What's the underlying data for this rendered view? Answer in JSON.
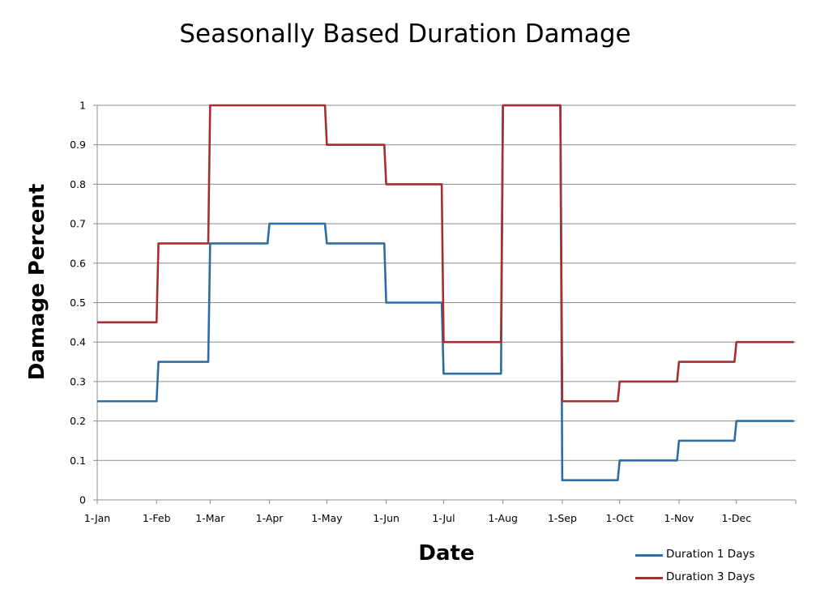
{
  "chart_data": {
    "type": "line",
    "title": "Seasonally Based Duration Damage",
    "xlabel": "Date",
    "ylabel": "Damage Percent",
    "x_ticks": [
      "1-Jan",
      "1-Feb",
      "1-Mar",
      "1-Apr",
      "1-May",
      "1-Jun",
      "1-Jul",
      "1-Aug",
      "1-Sep",
      "1-Oct",
      "1-Nov",
      "1-Dec"
    ],
    "y_ticks": [
      "0",
      "0.1",
      "0.2",
      "0.3",
      "0.4",
      "0.5",
      "0.6",
      "0.7",
      "0.8",
      "0.9",
      "1"
    ],
    "ylim": [
      0,
      1
    ],
    "grid": true,
    "legend_position": "bottom-right",
    "series": [
      {
        "name": "Duration 1 Days",
        "color": "#2e6ca6",
        "points": [
          [
            "1-Jan",
            0.25
          ],
          [
            "1-Feb",
            0.25
          ],
          [
            "2-Feb",
            0.35
          ],
          [
            "28-Feb",
            0.35
          ],
          [
            "1-Mar",
            0.65
          ],
          [
            "31-Mar",
            0.65
          ],
          [
            "1-Apr",
            0.7
          ],
          [
            "30-Apr",
            0.7
          ],
          [
            "1-May",
            0.65
          ],
          [
            "31-May",
            0.65
          ],
          [
            "1-Jun",
            0.5
          ],
          [
            "30-Jun",
            0.5
          ],
          [
            "1-Jul",
            0.32
          ],
          [
            "31-Jul",
            0.32
          ],
          [
            "1-Aug",
            1.0
          ],
          [
            "31-Aug",
            1.0
          ],
          [
            "1-Sep",
            0.05
          ],
          [
            "30-Sep",
            0.05
          ],
          [
            "1-Oct",
            0.1
          ],
          [
            "31-Oct",
            0.1
          ],
          [
            "1-Nov",
            0.15
          ],
          [
            "30-Nov",
            0.15
          ],
          [
            "1-Dec",
            0.2
          ],
          [
            "31-Dec",
            0.2
          ]
        ]
      },
      {
        "name": "Duration 3 Days",
        "color": "#a62f2f",
        "points": [
          [
            "1-Jan",
            0.45
          ],
          [
            "1-Feb",
            0.45
          ],
          [
            "2-Feb",
            0.65
          ],
          [
            "28-Feb",
            0.65
          ],
          [
            "1-Mar",
            1.0
          ],
          [
            "30-Apr",
            1.0
          ],
          [
            "1-May",
            0.9
          ],
          [
            "31-May",
            0.9
          ],
          [
            "1-Jun",
            0.8
          ],
          [
            "30-Jun",
            0.8
          ],
          [
            "1-Jul",
            0.4
          ],
          [
            "31-Jul",
            0.4
          ],
          [
            "1-Aug",
            1.0
          ],
          [
            "31-Aug",
            1.0
          ],
          [
            "1-Sep",
            0.25
          ],
          [
            "30-Sep",
            0.25
          ],
          [
            "1-Oct",
            0.3
          ],
          [
            "31-Oct",
            0.3
          ],
          [
            "1-Nov",
            0.35
          ],
          [
            "30-Nov",
            0.35
          ],
          [
            "1-Dec",
            0.4
          ],
          [
            "31-Dec",
            0.4
          ]
        ]
      }
    ]
  }
}
